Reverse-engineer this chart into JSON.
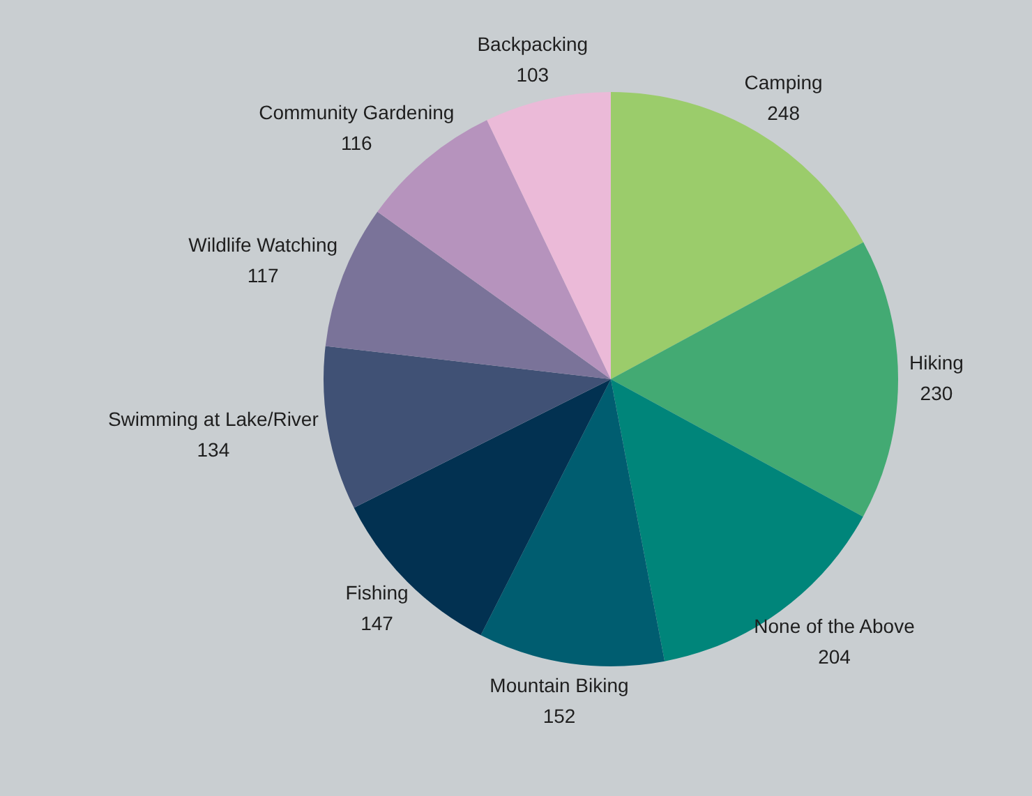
{
  "chart_data": {
    "type": "pie",
    "categories": [
      "Camping",
      "Hiking",
      "None of the Above",
      "Mountain Biking",
      "Fishing",
      "Swimming at Lake/River",
      "Wildlife Watching",
      "Community Gardening",
      "Backpacking"
    ],
    "values": [
      248,
      230,
      204,
      152,
      147,
      134,
      117,
      116,
      103
    ],
    "colors": [
      "#9bcc6b",
      "#43aa73",
      "#00857a",
      "#005d70",
      "#023151",
      "#405175",
      "#7a7399",
      "#b693bd",
      "#ebbad8"
    ],
    "data_labels": true,
    "legend": false
  }
}
